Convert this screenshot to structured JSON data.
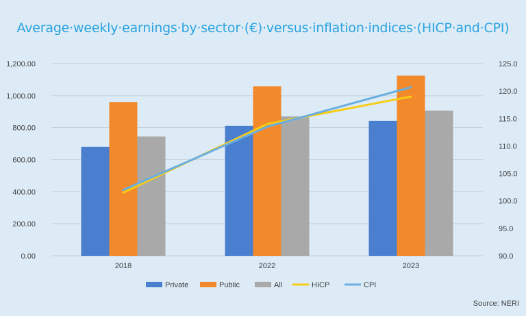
{
  "title": "Average·weekly·earnings·by·sector·(€)·versus·inflation·indices·(HICP·and·CPI)",
  "source": "Source: NERI",
  "colors": {
    "private": "#4a7fd0",
    "public": "#f28a2c",
    "all": "#a9a9a9",
    "hicp": "#f7cc14",
    "cpi": "#6aaee0",
    "title": "#2ba3df"
  },
  "chart_data": {
    "type": "bar",
    "categories": [
      "2018",
      "2022",
      "2023"
    ],
    "series": [
      {
        "name": "Private",
        "type": "bar",
        "axis": "left",
        "values": [
          680,
          812,
          842
        ]
      },
      {
        "name": "Public",
        "type": "bar",
        "axis": "left",
        "values": [
          960,
          1058,
          1125
        ]
      },
      {
        "name": "All",
        "type": "bar",
        "axis": "left",
        "values": [
          745,
          870,
          907
        ]
      },
      {
        "name": "HICP",
        "type": "line",
        "axis": "right",
        "values": [
          101.5,
          114.0,
          119.0
        ]
      },
      {
        "name": "CPI",
        "type": "line",
        "axis": "right",
        "values": [
          102.0,
          113.5,
          120.7
        ]
      }
    ],
    "ylim_left": [
      0,
      1200
    ],
    "ylim_right": [
      90,
      125
    ],
    "left_ticks": [
      "0.00",
      "200.00",
      "400.00",
      "600.00",
      "800.00",
      "1,000.00",
      "1,200.00"
    ],
    "right_ticks": [
      "90.0",
      "95.0",
      "100.0",
      "105.0",
      "110.0",
      "115.0",
      "120.0",
      "125.0"
    ],
    "grid": true,
    "legend": "bottom"
  }
}
